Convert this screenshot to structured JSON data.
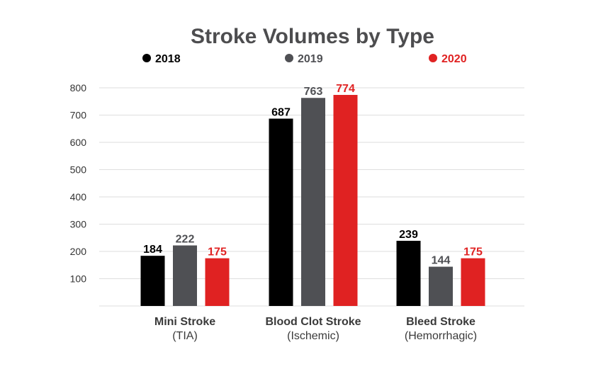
{
  "chart_data": {
    "type": "bar",
    "title": "Stroke Volumes by Type",
    "categories": [
      {
        "name": "Mini Stroke",
        "sub": "(TIA)"
      },
      {
        "name": "Blood Clot Stroke",
        "sub": "(Ischemic)"
      },
      {
        "name": "Bleed Stroke",
        "sub": "(Hemorrhagic)"
      }
    ],
    "series": [
      {
        "name": "2018",
        "color": "#000000",
        "values": [
          184,
          687,
          239
        ]
      },
      {
        "name": "2019",
        "color": "#4f5054",
        "values": [
          222,
          763,
          144
        ]
      },
      {
        "name": "2020",
        "color": "#e02222",
        "values": [
          175,
          774,
          175
        ]
      }
    ],
    "ylim": [
      0,
      800
    ],
    "yticks": [
      100,
      200,
      300,
      400,
      500,
      600,
      700,
      800
    ],
    "xlabel": "",
    "ylabel": "",
    "grid": true,
    "legend": "top"
  }
}
